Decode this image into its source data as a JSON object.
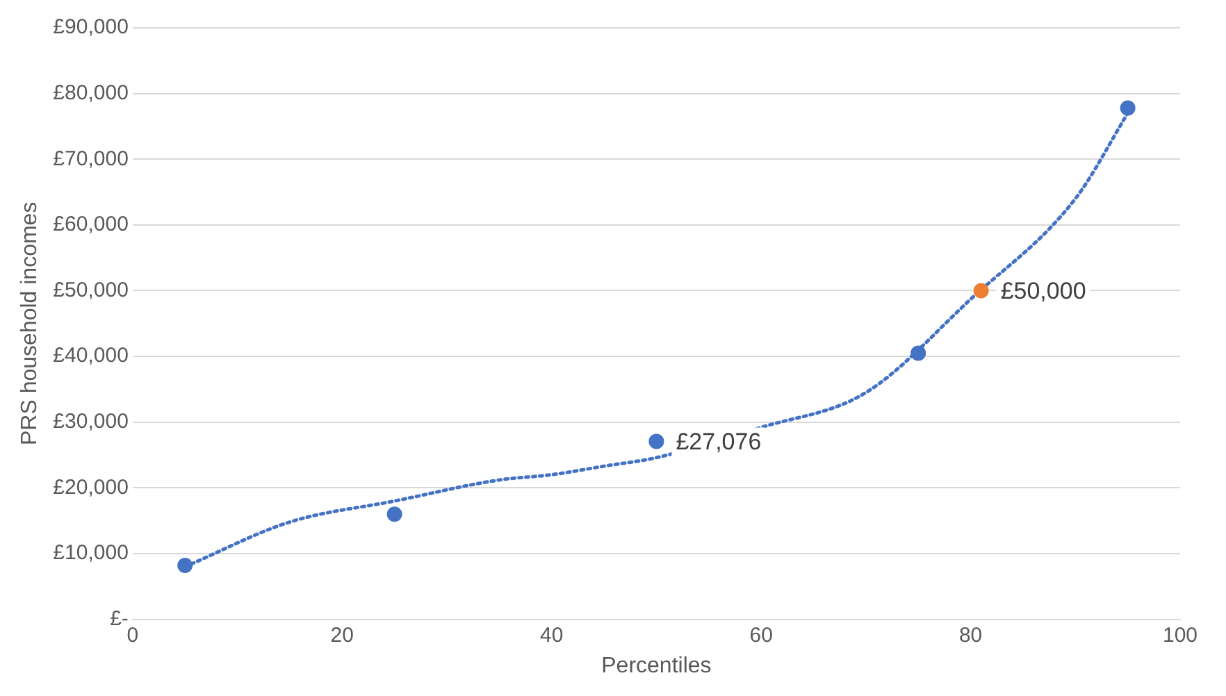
{
  "chart_data": {
    "type": "scatter",
    "xlabel": "Percentiles",
    "ylabel": "PRS household incomes",
    "xlim": [
      0,
      100
    ],
    "xticks": [
      0,
      20,
      40,
      60,
      80,
      100
    ],
    "ylim": [
      0,
      90000
    ],
    "yticks": [
      {
        "value": 0,
        "label": "£-"
      },
      {
        "value": 10000,
        "label": "£10,000"
      },
      {
        "value": 20000,
        "label": "£20,000"
      },
      {
        "value": 30000,
        "label": "£30,000"
      },
      {
        "value": 40000,
        "label": "£40,000"
      },
      {
        "value": 50000,
        "label": "£50,000"
      },
      {
        "value": 60000,
        "label": "£60,000"
      },
      {
        "value": 70000,
        "label": "£70,000"
      },
      {
        "value": 80000,
        "label": "£80,000"
      },
      {
        "value": 90000,
        "label": "£90,000"
      }
    ],
    "grid": "y",
    "legend": false,
    "marker": "circle",
    "series": [
      {
        "type": "line",
        "color": "#4472c4",
        "line_style": "dotted",
        "marker": "none",
        "x": [
          5,
          15,
          25,
          35,
          40,
          45,
          50,
          60,
          70,
          80,
          90,
          95
        ],
        "values": [
          8000,
          14800,
          18000,
          21200,
          22000,
          23300,
          24600,
          29200,
          34500,
          48700,
          64000,
          77000
        ]
      },
      {
        "type": "scatter",
        "color": "#4472c4",
        "x": [
          5,
          25,
          50,
          75,
          95
        ],
        "values": [
          8200,
          16000,
          27076,
          40500,
          77800
        ],
        "value_labels": [
          null,
          null,
          "£27,076",
          null,
          null
        ]
      },
      {
        "type": "scatter",
        "color": "#ed7d31",
        "x": [
          81
        ],
        "values": [
          50000
        ],
        "value_labels": [
          "£50,000"
        ]
      }
    ]
  }
}
